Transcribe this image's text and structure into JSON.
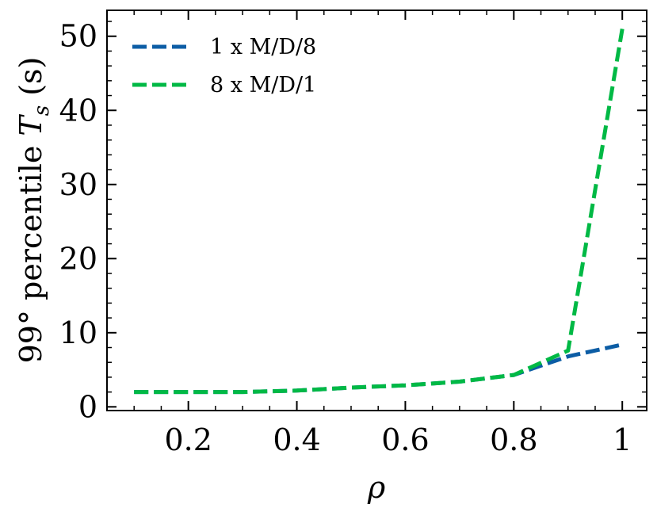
{
  "chart_data": {
    "type": "line",
    "xlabel": "ρ",
    "ylabel": "99° percentile T_s (s)",
    "ylabel_parts": {
      "prefix": "99° percentile ",
      "var_main": "T",
      "var_sub": "s",
      "suffix": " (s)"
    },
    "xlim": [
      0.05,
      1.045
    ],
    "ylim": [
      -0.5,
      53.5
    ],
    "x_ticks": [
      0.2,
      0.4,
      0.6,
      0.8,
      1.0
    ],
    "x_tick_labels": [
      "0.2",
      "0.4",
      "0.6",
      "0.8",
      "1"
    ],
    "y_ticks": [
      0,
      10,
      20,
      30,
      40,
      50
    ],
    "y_tick_labels": [
      "0",
      "10",
      "20",
      "30",
      "40",
      "50"
    ],
    "legend_position": "top-left",
    "grid": false,
    "series": [
      {
        "name": "1 x M/D/8",
        "color": "#0C5DA5",
        "style": "dashed",
        "x": [
          0.1,
          0.2,
          0.3,
          0.4,
          0.5,
          0.6,
          0.7,
          0.8,
          0.9,
          1.0
        ],
        "y": [
          2.0,
          2.0,
          2.0,
          2.2,
          2.6,
          2.9,
          3.4,
          4.3,
          6.8,
          8.4
        ]
      },
      {
        "name": "8 x M/D/1",
        "color": "#00B945",
        "style": "dashed",
        "x": [
          0.1,
          0.2,
          0.3,
          0.4,
          0.5,
          0.6,
          0.7,
          0.8,
          0.9,
          1.0
        ],
        "y": [
          2.0,
          2.0,
          2.0,
          2.2,
          2.6,
          2.9,
          3.4,
          4.3,
          7.6,
          51.0
        ]
      }
    ]
  }
}
